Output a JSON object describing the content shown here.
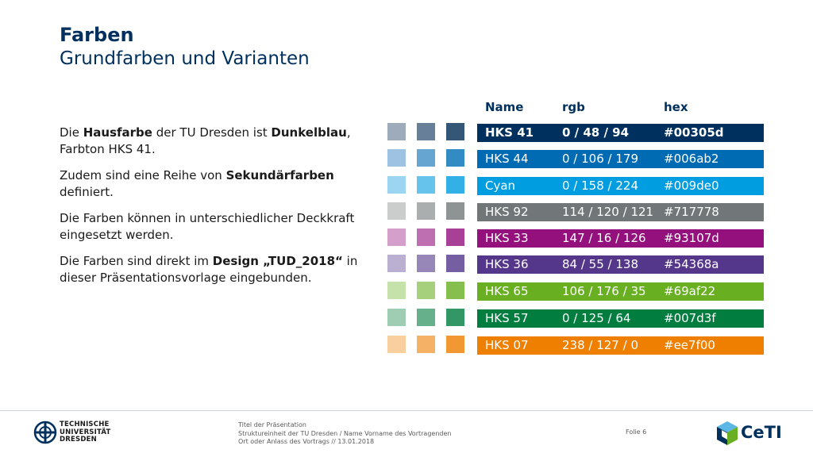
{
  "slide": {
    "title": "Farben",
    "subtitle": "Grundfarben und Varianten"
  },
  "body": {
    "p1": {
      "a": "Die ",
      "b": "Hausfarbe",
      "c": " der TU Dresden ist ",
      "d": "Dunkelblau",
      "e": ", Farbton HKS 41."
    },
    "p2": {
      "a": "Zudem sind eine Reihe von ",
      "b": "Sekundärfarben",
      "c": " definiert."
    },
    "p3": {
      "a": "Die Farben können in unterschiedlicher Deckkraft eingesetzt werden."
    },
    "p4": {
      "a": "Die Farben sind direkt im ",
      "b": "Design „TUD_2018“",
      "c": " in dieser Präsentationsvorlage eingebunden."
    }
  },
  "table": {
    "headers": {
      "name": "Name",
      "rgb": "rgb",
      "hex": "hex"
    },
    "rows": [
      {
        "name": "HKS 41",
        "rgb": "0 / 48 / 94",
        "hex": "#00305d",
        "color": "#00305d",
        "tints": [
          "#9dabbb",
          "#687f9a",
          "#345778"
        ]
      },
      {
        "name": "HKS 44",
        "rgb": "0 / 106 / 179",
        "hex": "#006ab2",
        "color": "#006ab2",
        "tints": [
          "#9ec3e2",
          "#66a4d1",
          "#338bc4"
        ]
      },
      {
        "name": "Cyan",
        "rgb": "0 / 158 / 224",
        "hex": "#009de0",
        "color": "#009de0",
        "tints": [
          "#9bd5f2",
          "#66c4ec",
          "#33b1e6"
        ]
      },
      {
        "name": "HKS 92",
        "rgb": "114 / 120 / 121",
        "hex": "#717778",
        "color": "#717778",
        "tints": [
          "#cbcdcd",
          "#aaaeae",
          "#8e9394"
        ]
      },
      {
        "name": "HKS 33",
        "rgb": "147 / 16 / 126",
        "hex": "#93107d",
        "color": "#93107d",
        "tints": [
          "#d4a0cb",
          "#bd6fb1",
          "#a84097"
        ]
      },
      {
        "name": "HKS 36",
        "rgb": "84 / 55 / 138",
        "hex": "#54368a",
        "color": "#54368a",
        "tints": [
          "#bbb0d1",
          "#9787b9",
          "#765ea2"
        ]
      },
      {
        "name": "HKS 65",
        "rgb": "106 / 176 / 35",
        "hex": "#69af22",
        "color": "#69af22",
        "tints": [
          "#c6e2ab",
          "#a6d07c",
          "#87bf4f"
        ]
      },
      {
        "name": "HKS 57",
        "rgb": "0 / 125 / 64",
        "hex": "#007d3f",
        "color": "#007d3f",
        "tints": [
          "#9ecdb4",
          "#66b18c",
          "#339765"
        ]
      },
      {
        "name": "HKS 07",
        "rgb": "238 / 127 / 0",
        "hex": "#ee7f00",
        "color": "#ee7f00",
        "tints": [
          "#f9cf9f",
          "#f5b166",
          "#f19833"
        ]
      }
    ]
  },
  "footer": {
    "university": [
      "TECHNISCHE",
      "UNIVERSITÄT",
      "DRESDEN"
    ],
    "line1": "Titel der Präsentation",
    "line2": "Struktureinheit der TU Dresden / Name Vorname des Vortragenden",
    "line3": "Ort oder Anlass des Vortrags // 13.01.2018",
    "slide_number": "Folie 6",
    "partner_logo": "CeTI"
  }
}
